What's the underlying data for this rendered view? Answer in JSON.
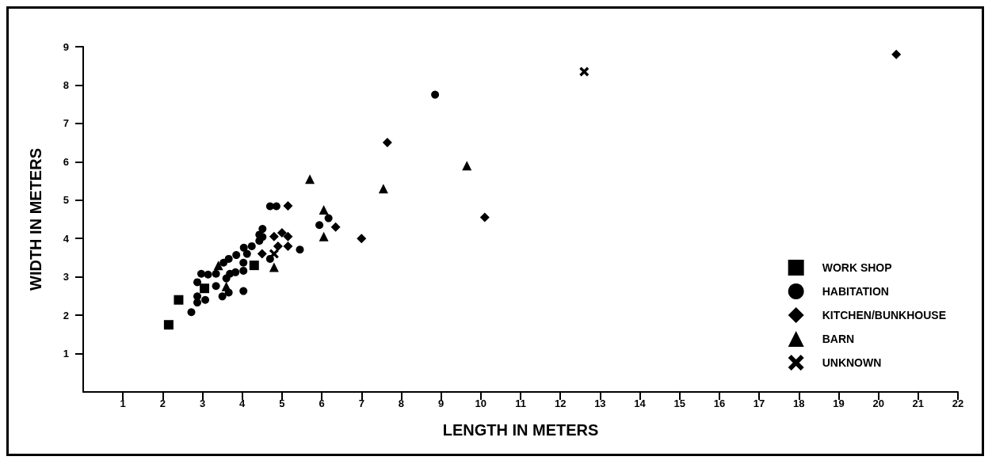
{
  "chart_data": {
    "type": "scatter",
    "xlabel": "LENGTH IN METERS",
    "ylabel": "WIDTH IN METERS",
    "xlim": [
      0,
      22
    ],
    "xticks": [
      1,
      2,
      3,
      4,
      5,
      6,
      7,
      8,
      9,
      10,
      11,
      12,
      13,
      14,
      15,
      16,
      17,
      18,
      19,
      20,
      21,
      22
    ],
    "ylim": [
      0,
      9
    ],
    "yticks": [
      1,
      2,
      3,
      4,
      5,
      6,
      7,
      8,
      9
    ],
    "grid": false,
    "legend": "bottom right",
    "series": [
      {
        "name": "WORK SHOP",
        "marker": "square",
        "color": "#000000",
        "x": [
          2.15,
          2.4,
          3.05,
          4.3
        ],
        "values": [
          1.75,
          2.4,
          2.7,
          3.3
        ]
      },
      {
        "name": "HABITATION",
        "marker": "circle",
        "color": "#000000",
        "x": [
          2.72,
          2.87,
          2.87,
          2.87,
          2.97,
          3.07,
          3.14,
          3.34,
          3.34,
          3.5,
          3.53,
          3.6,
          3.66,
          3.66,
          3.69,
          3.83,
          3.85,
          4.03,
          4.03,
          4.03,
          4.04,
          4.12,
          4.24,
          4.43,
          4.51,
          4.7,
          5.45,
          4.7,
          4.86,
          5.94,
          6.17,
          4.51,
          4.43,
          8.85
        ],
        "values": [
          2.08,
          2.33,
          2.49,
          2.86,
          3.08,
          2.4,
          3.06,
          3.08,
          2.76,
          2.49,
          3.37,
          2.96,
          3.47,
          2.59,
          3.08,
          3.12,
          3.57,
          3.37,
          3.16,
          2.63,
          3.76,
          3.6,
          3.8,
          3.94,
          4.04,
          3.47,
          3.71,
          4.84,
          4.84,
          4.35,
          4.53,
          4.25,
          4.1,
          7.75
        ]
      },
      {
        "name": "KITCHEN/BUNKHOUSE",
        "marker": "diamond",
        "color": "#000000",
        "x": [
          4.5,
          4.8,
          4.9,
          5.0,
          5.15,
          5.15,
          5.15,
          6.35,
          7.0,
          7.65,
          10.1,
          20.45
        ],
        "values": [
          3.6,
          4.05,
          3.8,
          4.15,
          4.05,
          3.8,
          4.85,
          4.3,
          4.0,
          6.5,
          4.55,
          8.8
        ]
      },
      {
        "name": "BARN",
        "marker": "triangle",
        "color": "#000000",
        "x": [
          3.4,
          3.6,
          4.8,
          5.7,
          6.05,
          6.05,
          7.55,
          9.65
        ],
        "values": [
          3.3,
          2.75,
          3.25,
          5.55,
          4.75,
          4.05,
          5.3,
          5.9
        ]
      },
      {
        "name": "UNKNOWN",
        "marker": "cross",
        "color": "#000000",
        "x": [
          4.8,
          12.6
        ],
        "values": [
          3.6,
          8.35
        ]
      }
    ]
  }
}
